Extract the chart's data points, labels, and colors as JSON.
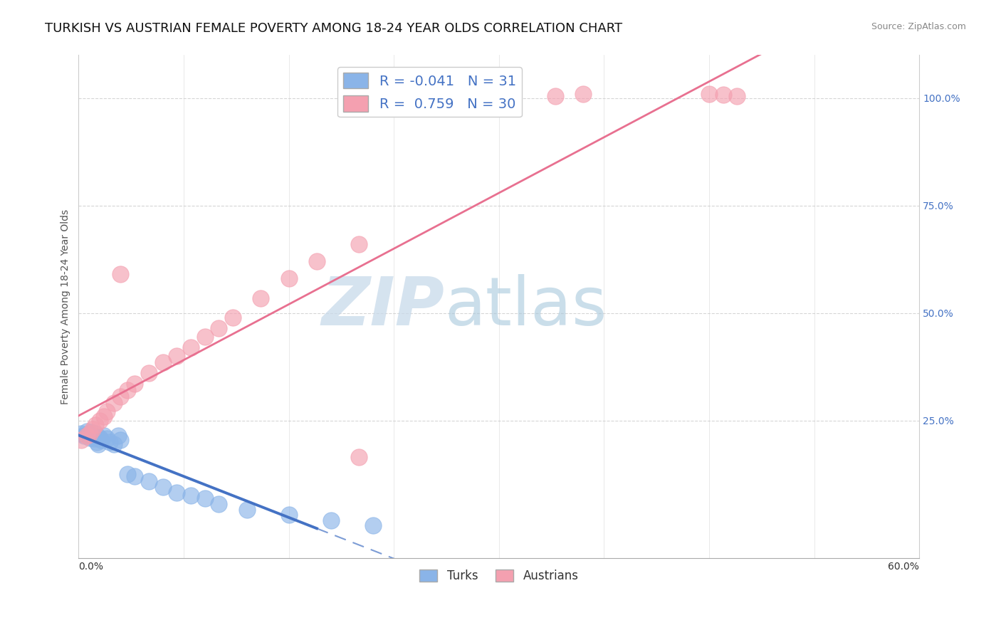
{
  "title": "TURKISH VS AUSTRIAN FEMALE POVERTY AMONG 18-24 YEAR OLDS CORRELATION CHART",
  "source": "Source: ZipAtlas.com",
  "ylabel": "Female Poverty Among 18-24 Year Olds",
  "legend_turks": "Turks",
  "legend_austrians": "Austrians",
  "R_turks": -0.041,
  "N_turks": 31,
  "R_austrians": 0.759,
  "N_austrians": 30,
  "turks_color": "#8ab4e8",
  "austrians_color": "#f4a0b0",
  "turks_line_color": "#4472c4",
  "austrians_line_color": "#e87090",
  "ytick_labels": [
    "25.0%",
    "50.0%",
    "75.0%",
    "100.0%"
  ],
  "ytick_values": [
    0.25,
    0.5,
    0.75,
    1.0
  ],
  "xlim": [
    0.0,
    0.6
  ],
  "ylim": [
    -0.07,
    1.1
  ],
  "background_color": "#ffffff",
  "grid_color": "#cccccc",
  "title_fontsize": 13,
  "axis_label_fontsize": 10,
  "tick_fontsize": 10,
  "turks_x": [
    0.002,
    0.004,
    0.006,
    0.007,
    0.008,
    0.009,
    0.01,
    0.011,
    0.012,
    0.013,
    0.014,
    0.015,
    0.016,
    0.018,
    0.02,
    0.022,
    0.025,
    0.028,
    0.03,
    0.035,
    0.04,
    0.05,
    0.06,
    0.07,
    0.08,
    0.09,
    0.1,
    0.12,
    0.15,
    0.18,
    0.21
  ],
  "turks_y": [
    0.22,
    0.215,
    0.225,
    0.218,
    0.21,
    0.222,
    0.215,
    0.208,
    0.22,
    0.2,
    0.195,
    0.21,
    0.205,
    0.215,
    0.208,
    0.2,
    0.195,
    0.215,
    0.205,
    0.125,
    0.12,
    0.108,
    0.095,
    0.082,
    0.075,
    0.068,
    0.055,
    0.042,
    0.03,
    0.018,
    0.005
  ],
  "austrians_x": [
    0.002,
    0.006,
    0.008,
    0.01,
    0.012,
    0.015,
    0.018,
    0.02,
    0.025,
    0.03,
    0.035,
    0.04,
    0.05,
    0.06,
    0.07,
    0.08,
    0.09,
    0.1,
    0.11,
    0.13,
    0.15,
    0.17,
    0.2,
    0.34,
    0.36,
    0.45,
    0.46,
    0.47,
    0.03,
    0.2
  ],
  "austrians_y": [
    0.205,
    0.215,
    0.22,
    0.23,
    0.24,
    0.25,
    0.26,
    0.27,
    0.29,
    0.305,
    0.32,
    0.335,
    0.36,
    0.385,
    0.4,
    0.42,
    0.445,
    0.465,
    0.49,
    0.535,
    0.58,
    0.62,
    0.66,
    1.005,
    1.01,
    1.01,
    1.008,
    1.005,
    0.59,
    0.165
  ]
}
